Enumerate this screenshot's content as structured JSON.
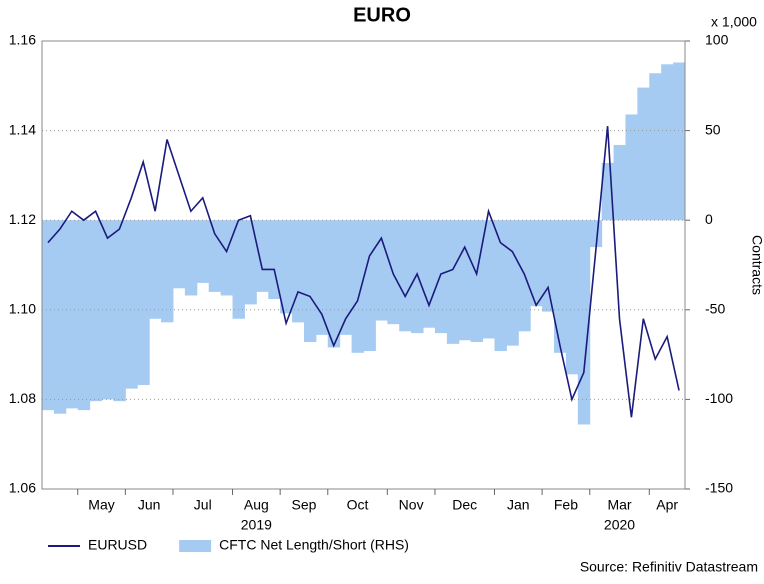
{
  "chart_data": {
    "type": "line",
    "title": "EURO",
    "y2_unit": "x 1,000",
    "y2label": "Contracts",
    "source": "Source: Refinitiv Datastream",
    "x": [
      "2019-04",
      "2019-04",
      "2019-04",
      "2019-05",
      "2019-05",
      "2019-05",
      "2019-05",
      "2019-06",
      "2019-06",
      "2019-06",
      "2019-06",
      "2019-07",
      "2019-07",
      "2019-07",
      "2019-07",
      "2019-07",
      "2019-08",
      "2019-08",
      "2019-08",
      "2019-08",
      "2019-09",
      "2019-09",
      "2019-09",
      "2019-09",
      "2019-10",
      "2019-10",
      "2019-10",
      "2019-10",
      "2019-10",
      "2019-11",
      "2019-11",
      "2019-11",
      "2019-11",
      "2019-12",
      "2019-12",
      "2019-12",
      "2019-12",
      "2019-12",
      "2020-01",
      "2020-01",
      "2020-01",
      "2020-01",
      "2020-02",
      "2020-02",
      "2020-02",
      "2020-02",
      "2020-03",
      "2020-03",
      "2020-03",
      "2020-03",
      "2020-03",
      "2020-04",
      "2020-04",
      "2020-04"
    ],
    "month_labels": [
      {
        "value": "2019-05",
        "label": "May"
      },
      {
        "value": "2019-06",
        "label": "Jun"
      },
      {
        "value": "2019-07",
        "label": "Jul"
      },
      {
        "value": "2019-08",
        "label": "Aug"
      },
      {
        "value": "2019-09",
        "label": "Sep"
      },
      {
        "value": "2019-10",
        "label": "Oct"
      },
      {
        "value": "2019-11",
        "label": "Nov"
      },
      {
        "value": "2019-12",
        "label": "Dec"
      },
      {
        "value": "2020-01",
        "label": "Jan"
      },
      {
        "value": "2020-02",
        "label": "Feb"
      },
      {
        "value": "2020-03",
        "label": "Mar"
      },
      {
        "value": "2020-04",
        "label": "Apr"
      }
    ],
    "year_labels": [
      {
        "value": "2019-08",
        "label": "2019"
      },
      {
        "value": "2020-03",
        "label": "2020"
      }
    ],
    "series": [
      {
        "name": "EURUSD",
        "color": "#1b1b7e",
        "axis": "y",
        "values": [
          1.115,
          1.118,
          1.122,
          1.12,
          1.122,
          1.116,
          1.118,
          1.125,
          1.133,
          1.122,
          1.138,
          1.13,
          1.122,
          1.125,
          1.117,
          1.113,
          1.12,
          1.121,
          1.109,
          1.109,
          1.097,
          1.104,
          1.103,
          1.099,
          1.092,
          1.098,
          1.102,
          1.112,
          1.116,
          1.108,
          1.103,
          1.108,
          1.101,
          1.108,
          1.109,
          1.114,
          1.108,
          1.122,
          1.115,
          1.113,
          1.108,
          1.101,
          1.105,
          1.092,
          1.08,
          1.086,
          1.113,
          1.141,
          1.098,
          1.076,
          1.098,
          1.089,
          1.094,
          1.082
        ]
      },
      {
        "name": "CFTC Net Length/Short (RHS)",
        "color": "#a6cbf2",
        "axis": "y2",
        "values": [
          -106,
          -108,
          -105,
          -106,
          -101,
          -100,
          -101,
          -94,
          -92,
          -55,
          -57,
          -38,
          -42,
          -35,
          -40,
          -42,
          -55,
          -47,
          -40,
          -44,
          -52,
          -57,
          -68,
          -64,
          -71,
          -64,
          -74,
          -73,
          -56,
          -58,
          -62,
          -63,
          -60,
          -63,
          -69,
          -67,
          -68,
          -66,
          -73,
          -70,
          -62,
          -48,
          -51,
          -74,
          -86,
          -114,
          -15,
          32,
          42,
          59,
          74,
          82,
          87,
          88
        ]
      }
    ],
    "ylim": [
      1.06,
      1.16
    ],
    "yticks": [
      1.06,
      1.08,
      {
        "value": 1.1,
        "label": "1.10"
      },
      1.12,
      1.14,
      1.16
    ],
    "y2lim": [
      -150,
      100
    ],
    "y2ticks": [
      -150,
      -100,
      -50,
      0,
      50,
      100
    ],
    "grid": true
  }
}
